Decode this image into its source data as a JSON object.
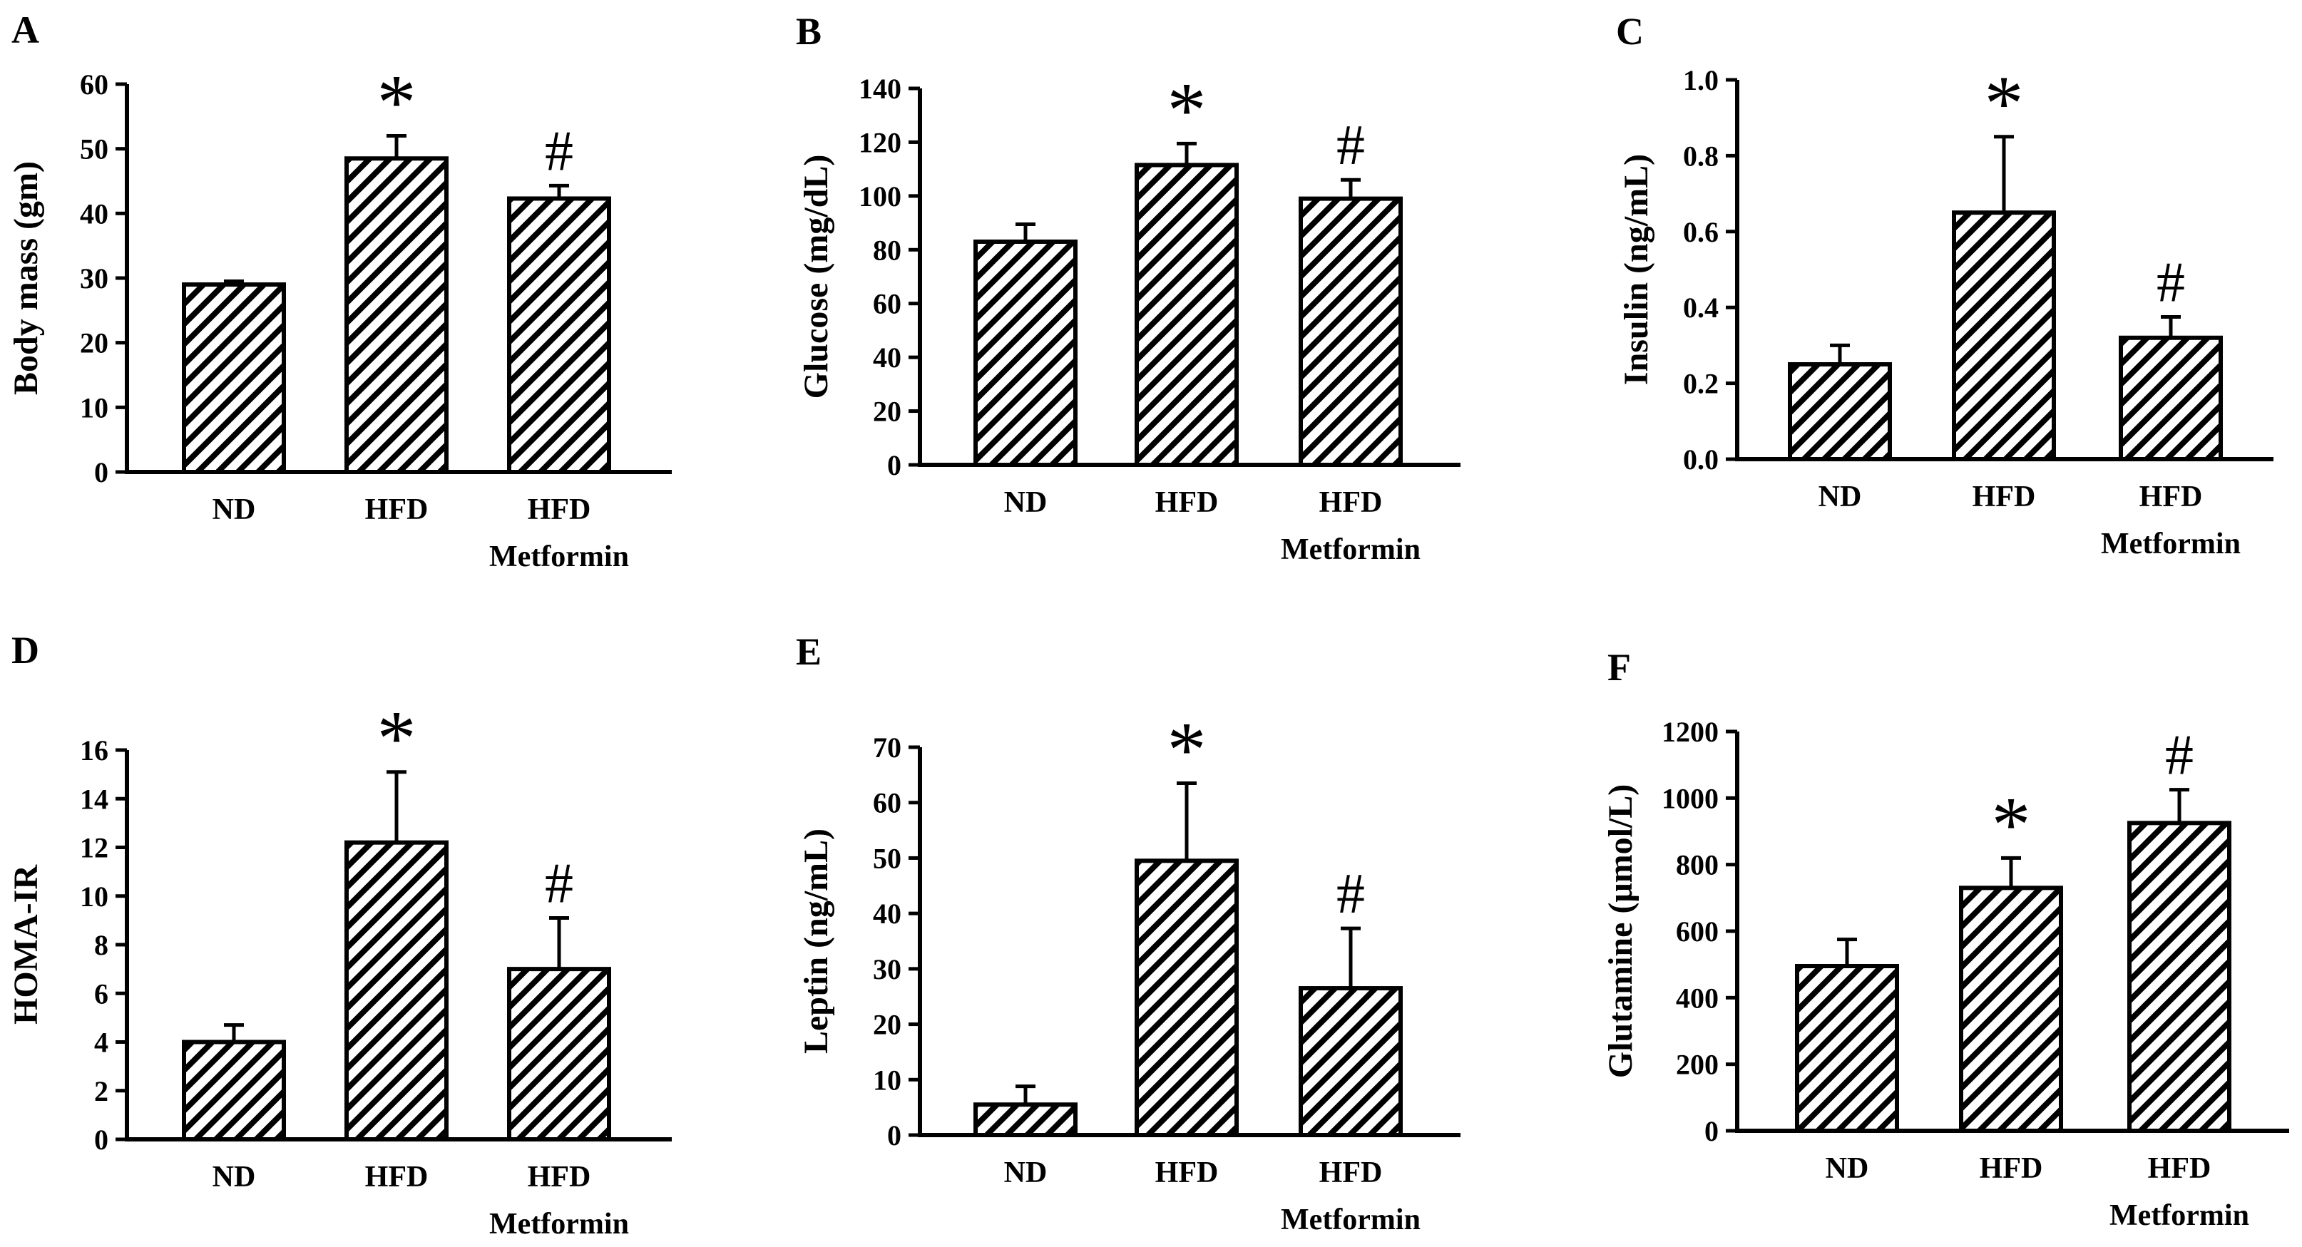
{
  "chart_data": [
    {
      "panel_label": "A",
      "type": "bar",
      "categories": [
        "ND",
        "HFD",
        "HFD\nMetformin"
      ],
      "values": [
        29,
        48.5,
        42.3
      ],
      "errors": [
        0.5,
        3.5,
        2.0
      ],
      "markers": [
        "",
        "*",
        "#"
      ],
      "ylabel": "Body mass (gm)",
      "ylim": [
        0,
        60
      ],
      "yticks": [
        "0",
        "10",
        "20",
        "30",
        "40",
        "50",
        "60"
      ]
    },
    {
      "panel_label": "B",
      "type": "bar",
      "categories": [
        "ND",
        "HFD",
        "HFD\nMetformin"
      ],
      "values": [
        83,
        111.5,
        99
      ],
      "errors": [
        6.5,
        8,
        7
      ],
      "markers": [
        "",
        "*",
        "#"
      ],
      "ylabel": "Glucose (mg/dL)",
      "ylim": [
        0,
        140
      ],
      "yticks": [
        "0",
        "20",
        "40",
        "60",
        "80",
        "100",
        "120",
        "140"
      ]
    },
    {
      "panel_label": "C",
      "type": "bar",
      "categories": [
        "ND",
        "HFD",
        "HFD\nMetformin"
      ],
      "values": [
        0.25,
        0.65,
        0.32
      ],
      "errors": [
        0.05,
        0.2,
        0.055
      ],
      "markers": [
        "",
        "*",
        "#"
      ],
      "ylabel": "Insulin (ng/mL)",
      "ylim": [
        0,
        1.0
      ],
      "yticks": [
        "0.0",
        "0.2",
        "0.4",
        "0.6",
        "0.8",
        "1.0"
      ]
    },
    {
      "panel_label": "D",
      "type": "bar",
      "categories": [
        "ND",
        "HFD",
        "HFD\nMetformin"
      ],
      "values": [
        4.0,
        12.2,
        7.0
      ],
      "errors": [
        0.7,
        2.9,
        2.1
      ],
      "markers": [
        "",
        "*",
        "#"
      ],
      "ylabel": "HOMA-IR",
      "ylim": [
        0,
        16
      ],
      "yticks": [
        "0",
        "2",
        "4",
        "6",
        "8",
        "10",
        "12",
        "14",
        "16"
      ]
    },
    {
      "panel_label": "E",
      "type": "bar",
      "categories": [
        "ND",
        "HFD",
        "HFD\nMetformin"
      ],
      "values": [
        5.5,
        49.5,
        26.5
      ],
      "errors": [
        3.3,
        14,
        10.8
      ],
      "markers": [
        "",
        "*",
        "#"
      ],
      "ylabel": "Leptin (ng/mL)",
      "ylim": [
        0,
        70
      ],
      "yticks": [
        "0",
        "10",
        "20",
        "30",
        "40",
        "50",
        "60",
        "70"
      ]
    },
    {
      "panel_label": "F",
      "type": "bar",
      "categories": [
        "ND",
        "HFD",
        "HFD\nMetformin"
      ],
      "values": [
        495,
        730,
        925
      ],
      "errors": [
        80,
        90,
        100
      ],
      "markers": [
        "",
        "*",
        "#"
      ],
      "ylabel": "Glutamine (μmol/L)",
      "ylim": [
        0,
        1200
      ],
      "yticks": [
        "0",
        "200",
        "400",
        "600",
        "800",
        "1000",
        "1200"
      ]
    }
  ]
}
